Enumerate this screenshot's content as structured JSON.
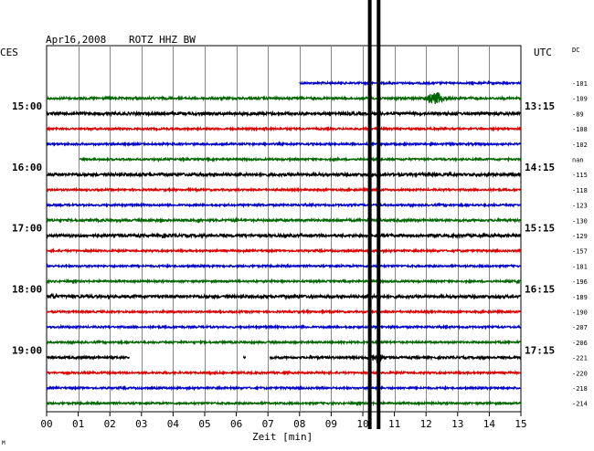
{
  "header": {
    "date": "Apr16,2008",
    "station": "ROTZ HHZ BW",
    "left_zone": "CES",
    "right_zone": "UTC",
    "dc_label": "DC"
  },
  "corner_mark": "M",
  "chart_data": {
    "type": "line",
    "subtype": "helicorder",
    "xlabel": "Zeit [min]",
    "x_ticks": [
      "00",
      "01",
      "02",
      "03",
      "04",
      "05",
      "06",
      "07",
      "08",
      "09",
      "10",
      "11",
      "12",
      "13",
      "14",
      "15"
    ],
    "xlim": [
      0,
      15
    ],
    "grid": true,
    "left_time_labels": [
      {
        "row": 1.5,
        "text": "15:00"
      },
      {
        "row": 5.5,
        "text": "16:00"
      },
      {
        "row": 9.5,
        "text": "17:00"
      },
      {
        "row": 13.5,
        "text": "18:00"
      },
      {
        "row": 17.5,
        "text": "19:00"
      }
    ],
    "right_time_labels": [
      {
        "row": 1.5,
        "text": "13:15"
      },
      {
        "row": 5.5,
        "text": "14:15"
      },
      {
        "row": 9.5,
        "text": "15:15"
      },
      {
        "row": 13.5,
        "text": "16:15"
      },
      {
        "row": 17.5,
        "text": "17:15"
      }
    ],
    "traces": [
      {
        "color": "#0000cc",
        "dc": "-101",
        "start": 8.0,
        "end": 15.0,
        "amp": 1,
        "events": []
      },
      {
        "color": "#006600",
        "dc": "-109",
        "start": 0.0,
        "end": 15.0,
        "amp": 1.2,
        "events": [
          {
            "t": 12.3,
            "a": 7,
            "w": 0.45
          }
        ]
      },
      {
        "color": "#000000",
        "dc": "-89",
        "start": 0.0,
        "end": 15.0,
        "amp": 1.5,
        "events": []
      },
      {
        "color": "#dd0000",
        "dc": "-108",
        "start": 0.0,
        "end": 15.0,
        "amp": 1,
        "events": [
          {
            "t": 6.9,
            "a": 2,
            "w": 0.1
          }
        ]
      },
      {
        "color": "#0000cc",
        "dc": "-102",
        "start": 0.0,
        "end": 15.0,
        "amp": 1,
        "events": []
      },
      {
        "color": "#006600",
        "dc": "nan",
        "start": 1.05,
        "end": 15.0,
        "amp": 1,
        "events": []
      },
      {
        "color": "#000000",
        "dc": "-115",
        "start": 0.0,
        "end": 15.0,
        "amp": 1.5,
        "events": [
          {
            "t": 4.6,
            "a": 2,
            "w": 0.1
          },
          {
            "t": 14.2,
            "a": 2,
            "w": 0.1
          }
        ]
      },
      {
        "color": "#dd0000",
        "dc": "-118",
        "start": 0.0,
        "end": 15.0,
        "amp": 1,
        "events": []
      },
      {
        "color": "#0000cc",
        "dc": "-123",
        "start": 0.0,
        "end": 15.0,
        "amp": 1,
        "events": []
      },
      {
        "color": "#006600",
        "dc": "-130",
        "start": 0.0,
        "end": 15.0,
        "amp": 1.2,
        "events": [
          {
            "t": 4.8,
            "a": 4,
            "w": 0.12
          },
          {
            "t": 6.0,
            "a": 3,
            "w": 0.12
          }
        ]
      },
      {
        "color": "#000000",
        "dc": "-129",
        "start": 0.0,
        "end": 15.0,
        "amp": 1.5,
        "events": [
          {
            "t": 3.7,
            "a": 3,
            "w": 0.1
          }
        ]
      },
      {
        "color": "#dd0000",
        "dc": "-157",
        "start": 0.0,
        "end": 15.0,
        "amp": 1,
        "events": []
      },
      {
        "color": "#0000cc",
        "dc": "-181",
        "start": 0.0,
        "end": 15.0,
        "amp": 1,
        "events": [
          {
            "t": 5.6,
            "a": 2,
            "w": 0.1
          }
        ]
      },
      {
        "color": "#006600",
        "dc": "-196",
        "start": 0.0,
        "end": 15.0,
        "amp": 1,
        "events": [
          {
            "t": 14.9,
            "a": 3,
            "w": 0.08
          }
        ]
      },
      {
        "color": "#000000",
        "dc": "-189",
        "start": 0.0,
        "end": 15.0,
        "amp": 1.5,
        "events": [
          {
            "t": 0.25,
            "a": 4,
            "w": 0.15
          }
        ]
      },
      {
        "color": "#dd0000",
        "dc": "-190",
        "start": 0.0,
        "end": 15.0,
        "amp": 1,
        "events": []
      },
      {
        "color": "#0000cc",
        "dc": "-207",
        "start": 0.0,
        "end": 15.0,
        "amp": 1,
        "events": []
      },
      {
        "color": "#006600",
        "dc": "-206",
        "start": 0.0,
        "end": 15.0,
        "amp": 1,
        "events": []
      },
      {
        "color": "#000000",
        "dc": "-221",
        "start": 0.0,
        "end": 15.0,
        "amp": 1.2,
        "gaps": [
          [
            2.62,
            6.22
          ],
          [
            6.3,
            7.05
          ]
        ],
        "events": [
          {
            "t": 10.25,
            "a": 9,
            "w": 0.12
          },
          {
            "t": 10.5,
            "a": 11,
            "w": 0.12
          }
        ]
      },
      {
        "color": "#dd0000",
        "dc": "-220",
        "start": 0.0,
        "end": 15.0,
        "amp": 1,
        "events": []
      },
      {
        "color": "#0000cc",
        "dc": "-218",
        "start": 0.0,
        "end": 15.0,
        "amp": 1,
        "events": []
      },
      {
        "color": "#006600",
        "dc": "-214",
        "start": 0.0,
        "end": 15.0,
        "amp": 1,
        "events": []
      }
    ],
    "markers": [
      10.22,
      10.5
    ]
  }
}
